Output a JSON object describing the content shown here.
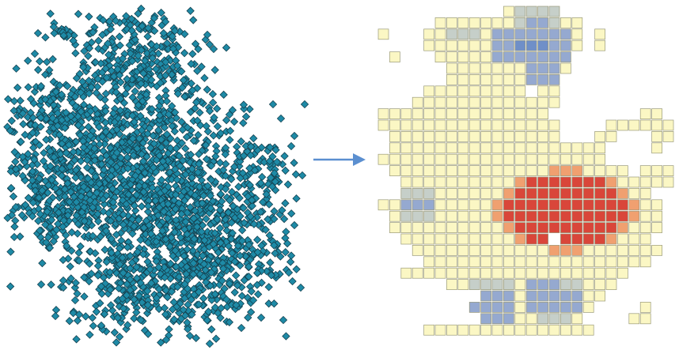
{
  "diagram": {
    "left_panel": {
      "name": "point-cluster",
      "point_color": "#1e8aa6",
      "point_edge": "#14414f"
    },
    "arrow": {
      "color": "#5b8fd0"
    },
    "right_panel": {
      "name": "aggregated-grid",
      "cell_edge": "#9a9a7a",
      "classes": {
        "low": "#fbf7c4",
        "cool_light": "#c6cfc9",
        "cool": "#95a9d0",
        "cool_dark": "#6f8fc8",
        "warm": "#f0a070",
        "hot": "#d9463a"
      }
    }
  }
}
